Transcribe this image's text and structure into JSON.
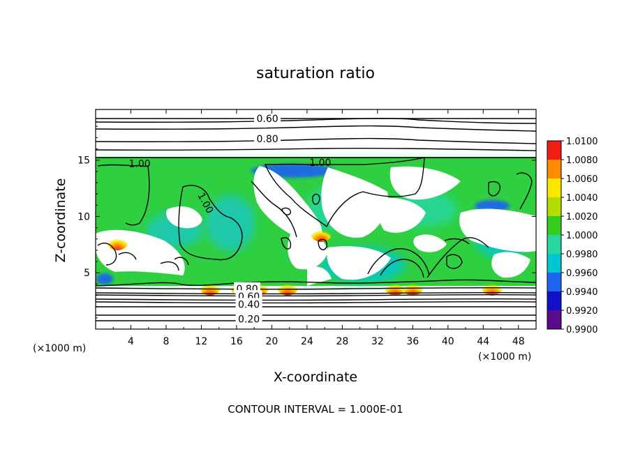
{
  "chart_data": {
    "type": "heatmap",
    "title": "saturation ratio",
    "xlabel": "X-coordinate",
    "ylabel": "Z-coordinate",
    "x_unit_label": "(×1000 m)",
    "x_unit_label_right": "(×1000 m)",
    "xlim": [
      0,
      50
    ],
    "ylim": [
      0,
      19.5
    ],
    "x_ticks": [
      "4",
      "8",
      "12",
      "16",
      "20",
      "24",
      "28",
      "32",
      "36",
      "40",
      "44",
      "48"
    ],
    "y_ticks": [
      "5",
      "10",
      "15"
    ],
    "footnote": "CONTOUR INTERVAL = 1.000E-01",
    "colorbar": {
      "levels": [
        "0.9900",
        "0.9920",
        "0.9940",
        "0.9960",
        "0.9980",
        "1.0000",
        "1.0020",
        "1.0040",
        "1.0060",
        "1.0080",
        "1.0100"
      ],
      "colors": [
        "#5a0a8c",
        "#1010c8",
        "#1e64f0",
        "#00c8d2",
        "#28d7a0",
        "#32cd1e",
        "#b4dc00",
        "#fae600",
        "#ff8c00",
        "#f01e14",
        "#f0aab4"
      ]
    },
    "contour_labels": [
      {
        "text": "0.60",
        "x": 19.5,
        "y": 18.7
      },
      {
        "text": "0.80",
        "x": 19.5,
        "y": 16.9
      },
      {
        "text": "1.00",
        "x": 5.0,
        "y": 14.7
      },
      {
        "text": "1.00",
        "x": 25.5,
        "y": 14.8
      },
      {
        "text": "1.00",
        "x": 12.5,
        "y": 11.2
      },
      {
        "text": "0.80",
        "x": 17.2,
        "y": 3.6
      },
      {
        "text": "0.60",
        "x": 17.4,
        "y": 2.9
      },
      {
        "text": "0.40",
        "x": 17.4,
        "y": 2.2
      },
      {
        "text": "0.20",
        "x": 17.4,
        "y": 0.9
      }
    ],
    "hotspots_x": [
      2.5,
      13.0,
      16.5,
      18.5,
      21.8,
      25.6,
      34.0,
      36.0,
      45.0
    ],
    "legend_position": "right"
  }
}
